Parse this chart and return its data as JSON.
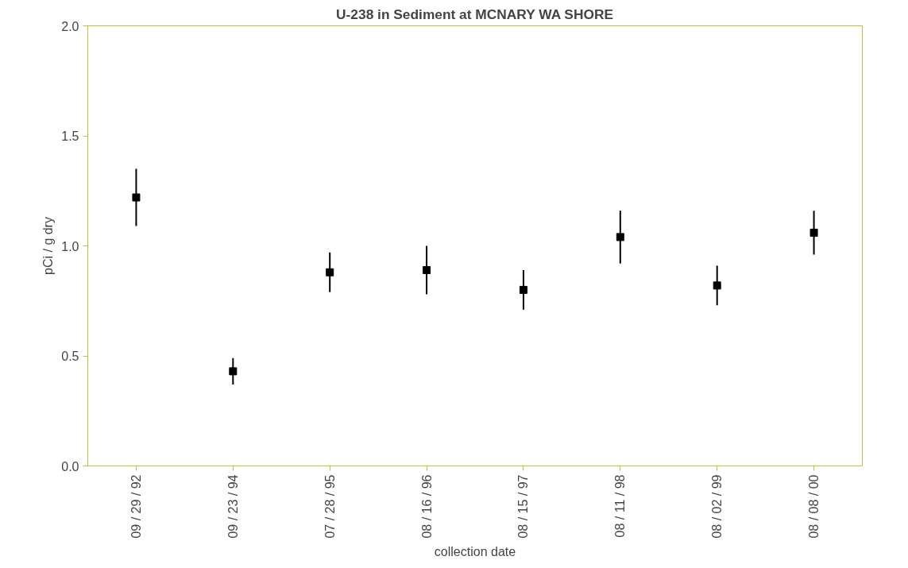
{
  "chart_data": {
    "type": "scatter",
    "title": "U-238 in Sediment at MCNARY WA SHORE",
    "xlabel": "collection date",
    "ylabel": "pCi / g dry",
    "categories": [
      "09 / 29 / 92",
      "09 / 23 / 94",
      "07 / 28 / 95",
      "08 / 16 / 96",
      "08 / 15 / 97",
      "08 / 11 / 98",
      "08 / 02 / 99",
      "08 / 08 / 00"
    ],
    "series": [
      {
        "color": "#000000",
        "values": [
          1.22,
          0.43,
          0.88,
          0.89,
          0.8,
          1.04,
          0.82,
          1.06
        ],
        "errors": [
          0.13,
          0.06,
          0.09,
          0.11,
          0.09,
          0.12,
          0.09,
          0.1
        ]
      }
    ],
    "ylim": [
      0,
      2
    ],
    "yticks": [
      {
        "value": 0,
        "label": "0.0"
      },
      {
        "value": 0.5,
        "label": "0.5"
      },
      {
        "value": 1,
        "label": "1.0"
      },
      {
        "value": 1.5,
        "label": "1.5"
      },
      {
        "value": 2,
        "label": "2.0"
      }
    ],
    "marker": "square",
    "grid": false
  }
}
